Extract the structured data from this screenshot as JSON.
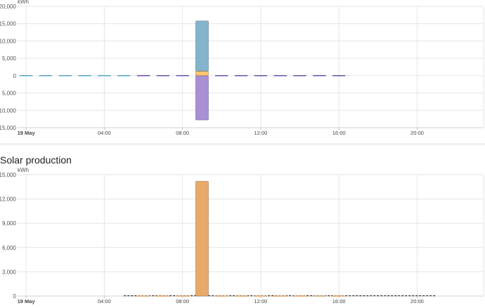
{
  "energy_card": {
    "title": "",
    "unit": "kWh",
    "chart_data": {
      "type": "bar",
      "ylabel": "kWh",
      "ylim": [
        -15000,
        20000
      ],
      "y_ticks": [
        {
          "value": 20000,
          "label": "20,000"
        },
        {
          "value": 15000,
          "label": "15,000"
        },
        {
          "value": 10000,
          "label": "10,000"
        },
        {
          "value": 5000,
          "label": "5,000"
        },
        {
          "value": 0,
          "label": "0"
        },
        {
          "value": -5000,
          "label": "5,000"
        },
        {
          "value": -10000,
          "label": "10,000"
        },
        {
          "value": -15000,
          "label": "15,000"
        }
      ],
      "x_ticks": [
        {
          "hour": 0,
          "label": "19 May",
          "bold": true
        },
        {
          "hour": 4,
          "label": "04:00"
        },
        {
          "hour": 8,
          "label": "08:00"
        },
        {
          "hour": 12,
          "label": "12:00"
        },
        {
          "hour": 16,
          "label": "16:00"
        },
        {
          "hour": 20,
          "label": "20:00"
        }
      ],
      "x_range": [
        -0.4,
        23.4
      ],
      "grid": true,
      "bars": [
        {
          "hour": 9,
          "y0": 0,
          "y1": 1300,
          "color": "#ffc66d"
        },
        {
          "hour": 9,
          "y0": 1300,
          "y1": 15800,
          "color": "#82b5cb"
        },
        {
          "hour": 9,
          "y0": 0,
          "y1": -12800,
          "color": "#a98fd4"
        }
      ],
      "zero_dash_series": [
        {
          "hours": [
            0,
            1,
            2,
            3,
            4,
            5
          ],
          "color": "#3f9fb8"
        },
        {
          "hours": [
            6,
            7,
            8,
            10,
            11,
            12,
            13,
            14,
            15,
            16
          ],
          "color": "#5b3fa0"
        }
      ]
    }
  },
  "solar_card": {
    "title": "Solar production",
    "unit": "kWh",
    "chart_data": {
      "type": "bar",
      "ylabel": "kWh",
      "ylim": [
        0,
        15000
      ],
      "y_ticks": [
        {
          "value": 15000,
          "label": "15,000"
        },
        {
          "value": 12000,
          "label": "12,000"
        },
        {
          "value": 9000,
          "label": "9,000"
        },
        {
          "value": 6000,
          "label": "6,000"
        },
        {
          "value": 3000,
          "label": "3,000"
        },
        {
          "value": 0,
          "label": "0"
        }
      ],
      "x_ticks": [
        {
          "hour": 0,
          "label": "19 May",
          "bold": true
        },
        {
          "hour": 4,
          "label": "04:00"
        },
        {
          "hour": 8,
          "label": "08:00"
        },
        {
          "hour": 12,
          "label": "12:00"
        },
        {
          "hour": 16,
          "label": "16:00"
        },
        {
          "hour": 20,
          "label": "20:00"
        }
      ],
      "x_range": [
        -0.4,
        23.4
      ],
      "grid": true,
      "bars": [
        {
          "hour": 9,
          "y0": 0,
          "y1": 14200,
          "color": "#e9a96a"
        }
      ],
      "zero_dash_series": [
        {
          "hours": [
            6,
            7,
            8,
            10,
            11,
            12,
            13,
            14,
            15,
            16
          ],
          "color": "#e9a96a"
        }
      ],
      "forecast_line": {
        "from_hour": 5,
        "to_hour": 21,
        "value": 0,
        "color": "#333333"
      }
    }
  }
}
